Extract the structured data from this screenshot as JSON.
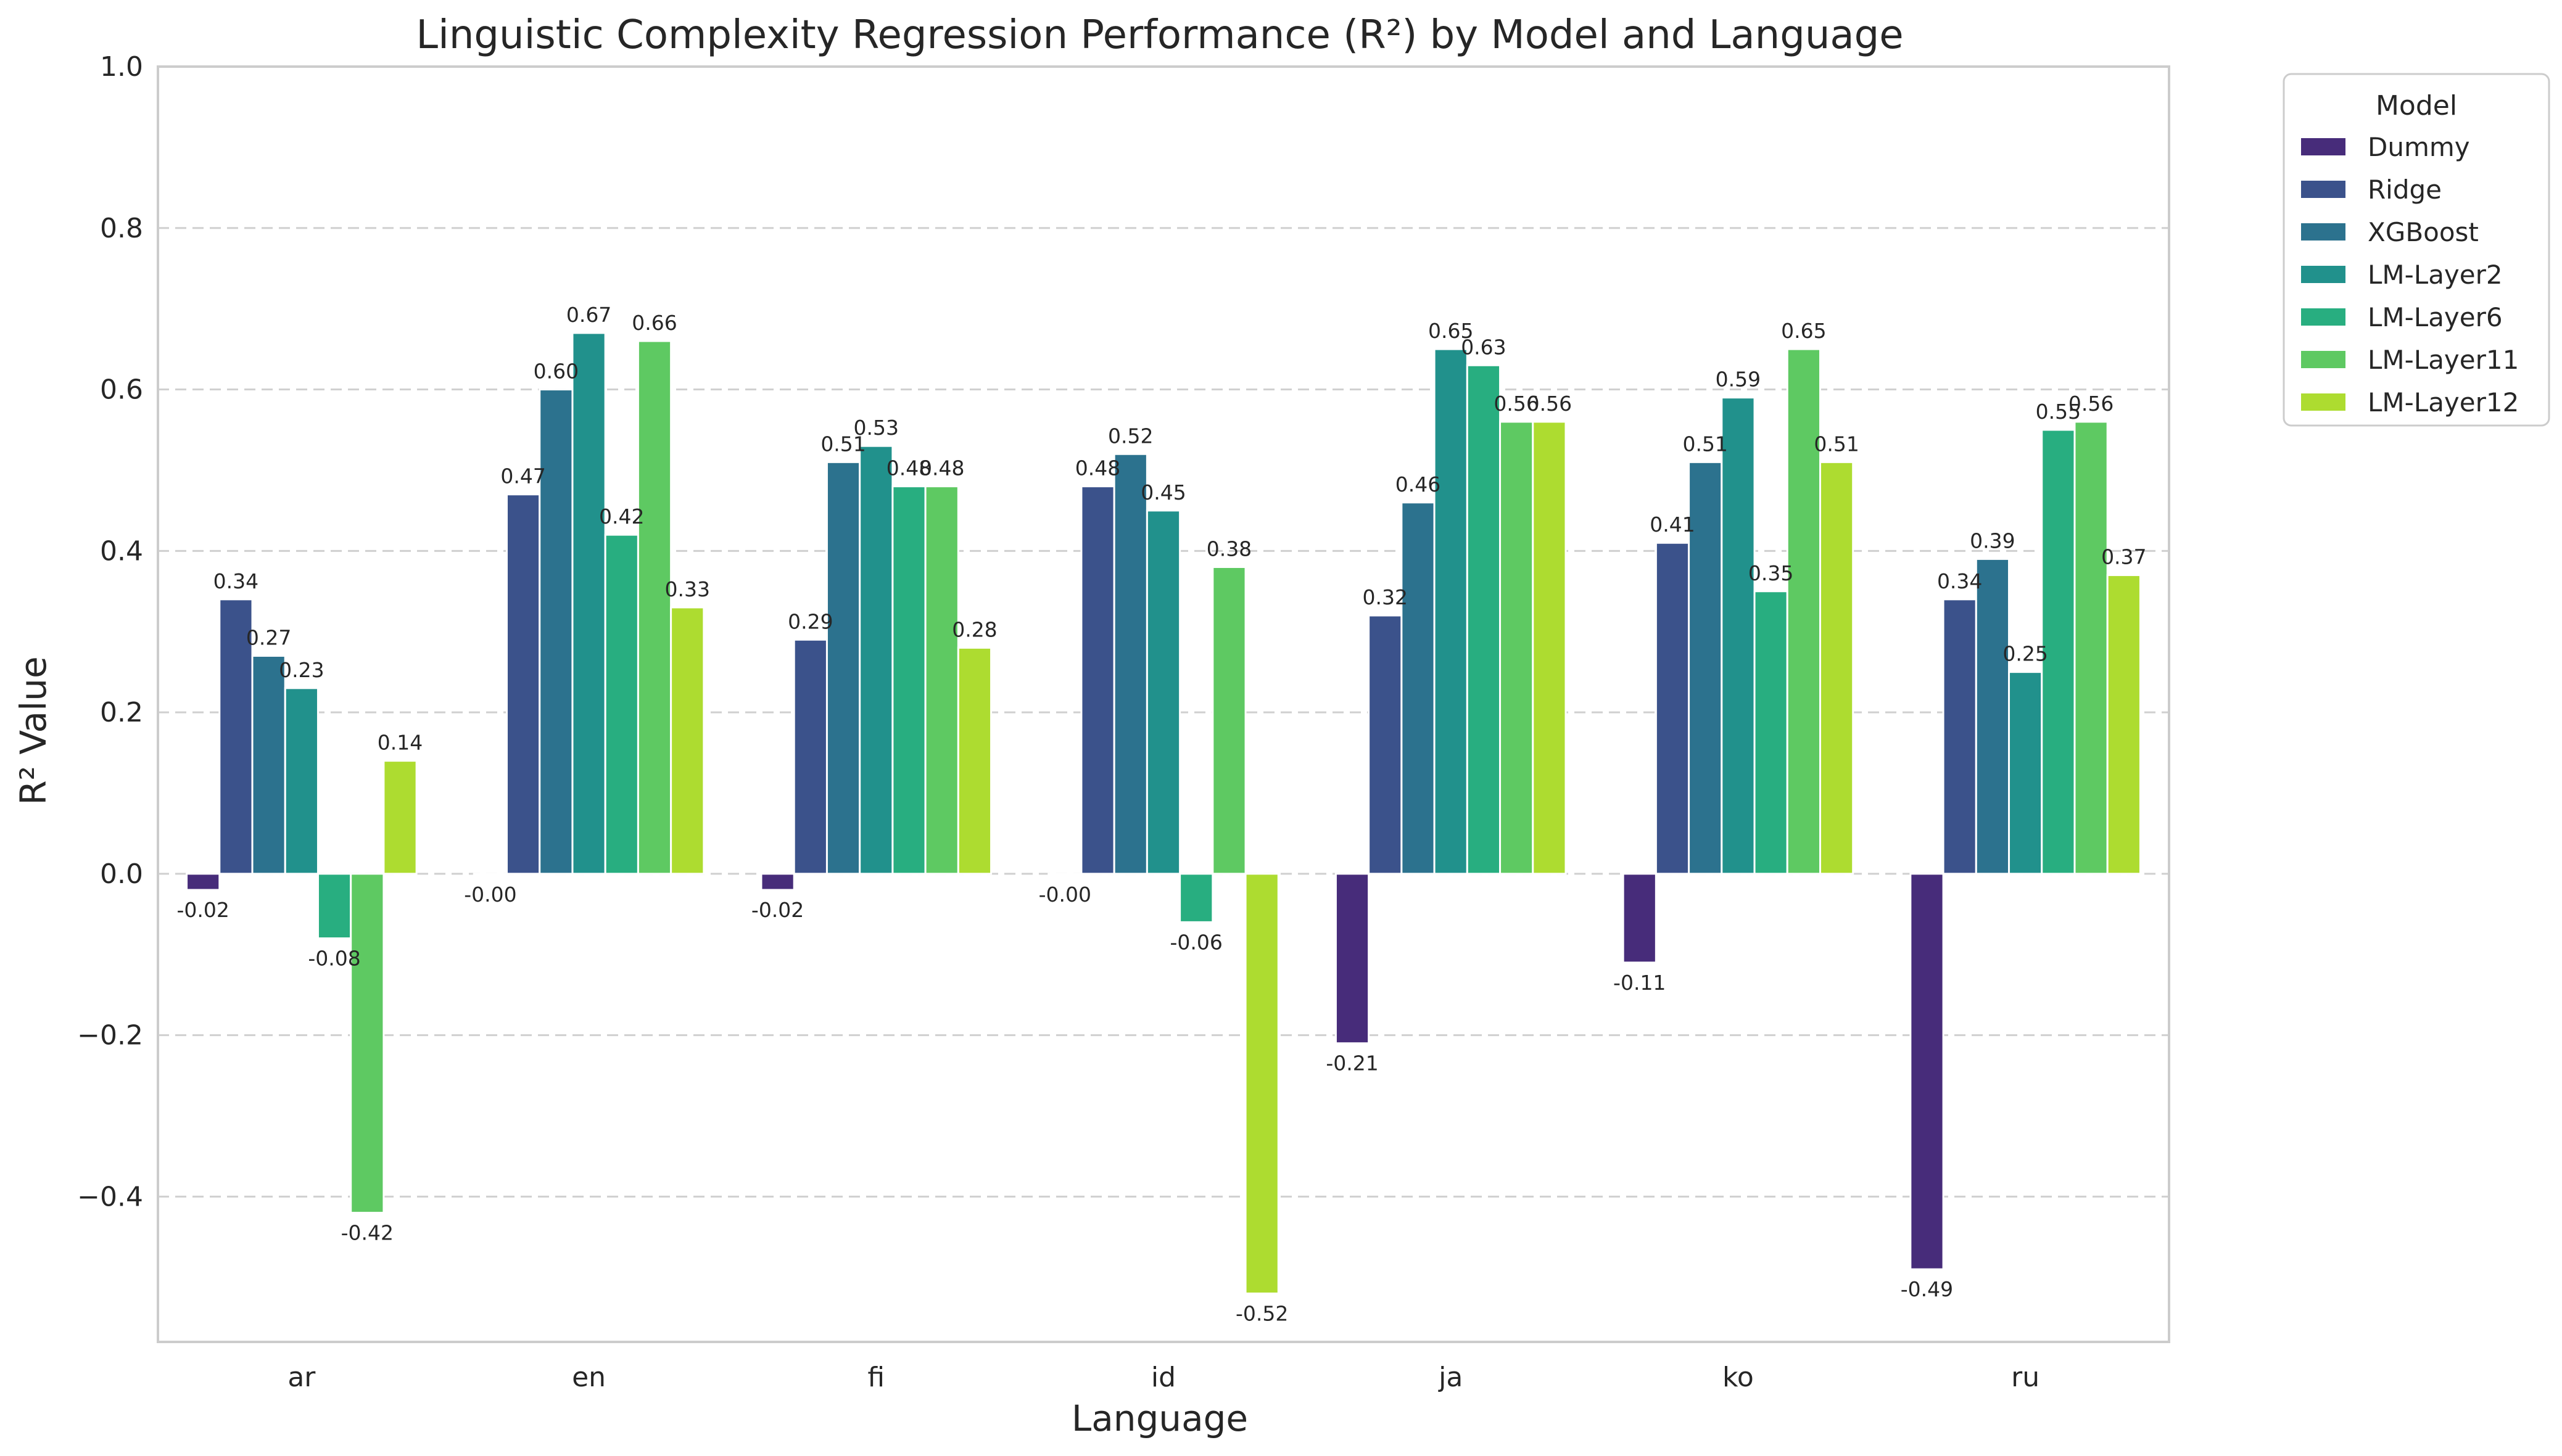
{
  "chart_data": {
    "type": "bar",
    "title": "Linguistic Complexity Regression Performance (R²) by Model and Language",
    "xlabel": "Language",
    "ylabel": "R² Value",
    "ylim": [
      -0.58,
      1.0
    ],
    "yticks": [
      -0.4,
      -0.2,
      0.0,
      0.2,
      0.4,
      0.6,
      0.8,
      1.0
    ],
    "ytick_labels": [
      "−0.4",
      "−0.2",
      "0.0",
      "0.2",
      "0.4",
      "0.6",
      "0.8",
      "1.0"
    ],
    "grid": "horizontal dashed",
    "legend_title": "Model",
    "legend_position": "outside top-right",
    "categories": [
      "ar",
      "en",
      "fi",
      "id",
      "ja",
      "ko",
      "ru"
    ],
    "series": [
      {
        "name": "Dummy",
        "color": "#472c7a",
        "values": [
          -0.02,
          -0.001,
          -0.02,
          -0.001,
          -0.21,
          -0.11,
          -0.49
        ],
        "labels": [
          "-0.02",
          "-0.00",
          "-0.02",
          "-0.00",
          "-0.21",
          "-0.11",
          "-0.49"
        ]
      },
      {
        "name": "Ridge",
        "color": "#3b528b",
        "values": [
          0.34,
          0.47,
          0.29,
          0.48,
          0.32,
          0.41,
          0.34
        ],
        "labels": [
          "0.34",
          "0.47",
          "0.29",
          "0.48",
          "0.32",
          "0.41",
          "0.34"
        ]
      },
      {
        "name": "XGBoost",
        "color": "#2c728e",
        "values": [
          0.27,
          0.6,
          0.51,
          0.52,
          0.46,
          0.51,
          0.39
        ],
        "labels": [
          "0.27",
          "0.60",
          "0.51",
          "0.52",
          "0.46",
          "0.51",
          "0.39"
        ]
      },
      {
        "name": "LM-Layer2",
        "color": "#21918c",
        "values": [
          0.23,
          0.67,
          0.53,
          0.45,
          0.65,
          0.59,
          0.25
        ],
        "labels": [
          "0.23",
          "0.67",
          "0.53",
          "0.45",
          "0.65",
          "0.59",
          "0.25"
        ]
      },
      {
        "name": "LM-Layer6",
        "color": "#28ae80",
        "values": [
          -0.08,
          0.42,
          0.48,
          -0.06,
          0.63,
          0.35,
          0.55
        ],
        "labels": [
          "-0.08",
          "0.42",
          "0.48",
          "-0.06",
          "0.63",
          "0.35",
          "0.55"
        ]
      },
      {
        "name": "LM-Layer11",
        "color": "#5ec962",
        "values": [
          -0.42,
          0.66,
          0.48,
          0.38,
          0.56,
          0.65,
          0.56
        ],
        "labels": [
          "-0.42",
          "0.66",
          "0.48",
          "0.38",
          "0.56",
          "0.65",
          "0.56"
        ]
      },
      {
        "name": "LM-Layer12",
        "color": "#addc30",
        "values": [
          0.14,
          0.33,
          0.28,
          -0.52,
          0.56,
          0.51,
          0.37
        ],
        "labels": [
          "0.14",
          "0.33",
          "0.28",
          "-0.52",
          "0.56",
          "0.51",
          "0.37"
        ]
      }
    ]
  }
}
